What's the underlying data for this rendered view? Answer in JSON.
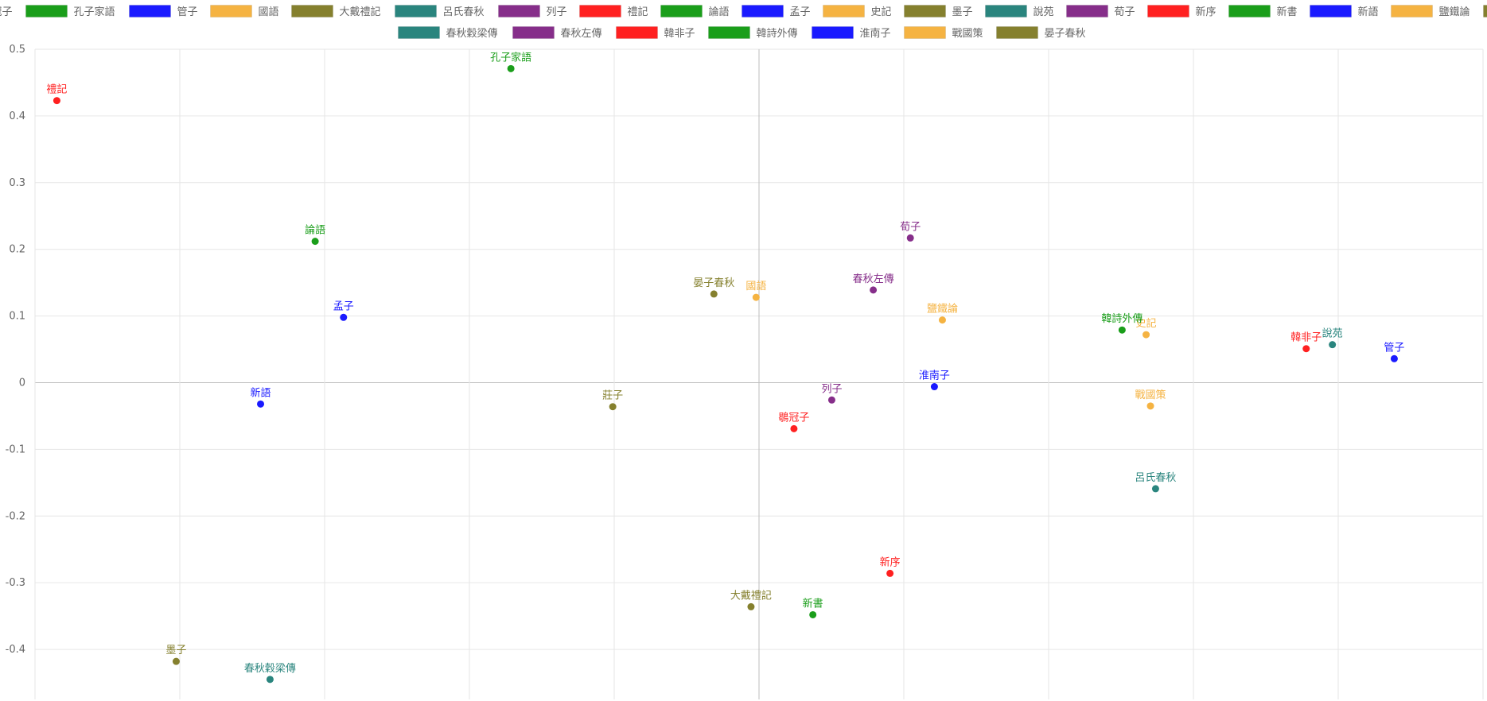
{
  "chart_data": {
    "type": "scatter",
    "legend_position": "top",
    "grid": true,
    "x_tick_labels": false,
    "xlim": [
      -5,
      5
    ],
    "ylim": [
      -0.475,
      0.5
    ],
    "y_ticks": [
      {
        "value": 0.5,
        "label": "0.5"
      },
      {
        "value": 0.4,
        "label": "0.4"
      },
      {
        "value": 0.3,
        "label": "0.3"
      },
      {
        "value": 0.2,
        "label": "0.2"
      },
      {
        "value": 0.1,
        "label": "0.1"
      },
      {
        "value": 0,
        "label": "0"
      },
      {
        "value": -0.1,
        "label": "-0.1"
      },
      {
        "value": -0.2,
        "label": "-0.2"
      },
      {
        "value": -0.3,
        "label": "-0.3"
      },
      {
        "value": -0.4,
        "label": "-0.4"
      }
    ],
    "series": [
      {
        "name": "鶡冠子",
        "color": "#ff2020",
        "x": 0.13,
        "y": -0.069
      },
      {
        "name": "孔子家語",
        "color": "#1a9e1a",
        "x": -3.76,
        "y": 0.471
      },
      {
        "name": "管子",
        "color": "#1a1aff",
        "x": 8.38,
        "y": 0.036
      },
      {
        "name": "國語",
        "color": "#f5b342",
        "x": -0.39,
        "y": 0.128
      },
      {
        "name": "大戴禮記",
        "color": "#85802e",
        "x": -0.46,
        "y": -0.336
      },
      {
        "name": "呂氏春秋",
        "color": "#2a857e",
        "x": 5.1,
        "y": -0.159
      },
      {
        "name": "列子",
        "color": "#862e8a",
        "x": 0.65,
        "y": -0.026
      },
      {
        "name": "禮記",
        "color": "#ff2020",
        "x": -10.0,
        "y": 0.423
      },
      {
        "name": "論語",
        "color": "#1a9e1a",
        "x": -6.45,
        "y": 0.212
      },
      {
        "name": "孟子",
        "color": "#1a1aff",
        "x": -6.06,
        "y": 0.098
      },
      {
        "name": "史記",
        "color": "#f5b342",
        "x": 4.97,
        "y": 0.072
      },
      {
        "name": "墨子",
        "color": "#85802e",
        "x": -8.36,
        "y": -0.418
      },
      {
        "name": "說苑",
        "color": "#2a857e",
        "x": 7.53,
        "y": 0.057
      },
      {
        "name": "荀子",
        "color": "#862e8a",
        "x": 1.73,
        "y": 0.217
      },
      {
        "name": "新序",
        "color": "#ff2020",
        "x": 1.45,
        "y": -0.286
      },
      {
        "name": "新書",
        "color": "#1a9e1a",
        "x": 0.39,
        "y": -0.348
      },
      {
        "name": "新語",
        "color": "#1a1aff",
        "x": -7.2,
        "y": -0.032
      },
      {
        "name": "鹽鐵論",
        "color": "#f5b342",
        "x": 2.17,
        "y": 0.094
      },
      {
        "name": "莊子",
        "color": "#85802e",
        "x": -2.36,
        "y": -0.036
      },
      {
        "name": "春秋穀梁傳",
        "color": "#2a857e",
        "x": -7.07,
        "y": -0.445
      },
      {
        "name": "春秋左傳",
        "color": "#862e8a",
        "x": 1.22,
        "y": 0.139
      },
      {
        "name": "韓非子",
        "color": "#ff2020",
        "x": 7.17,
        "y": 0.051
      },
      {
        "name": "韓詩外傳",
        "color": "#1a9e1a",
        "x": 4.64,
        "y": 0.079
      },
      {
        "name": "淮南子",
        "color": "#1a1aff",
        "x": 2.06,
        "y": -0.006
      },
      {
        "name": "戰國策",
        "color": "#f5b342",
        "x": 5.03,
        "y": -0.035
      },
      {
        "name": "晏子春秋",
        "color": "#85802e",
        "x": -0.97,
        "y": 0.133
      }
    ]
  }
}
